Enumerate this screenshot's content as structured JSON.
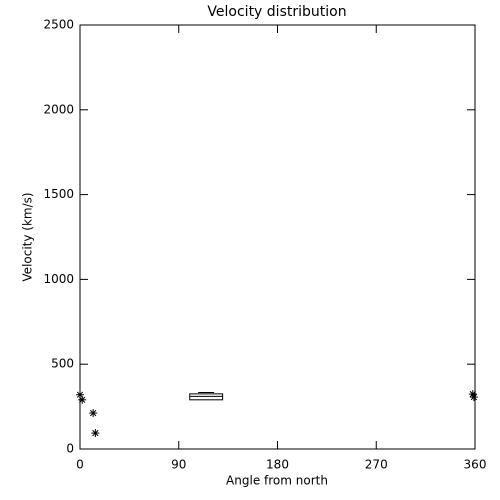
{
  "chart_data": {
    "type": "scatter",
    "title": "Velocity distribution",
    "x_label": "Angle from north",
    "y_label": "Velocity (km/s)",
    "x": [
      0,
      2,
      12,
      14,
      358,
      359
    ],
    "values": [
      320,
      290,
      212,
      94,
      324,
      306
    ],
    "color": "#000000",
    "box": {
      "xrange": [
        100,
        130
      ],
      "low": 290,
      "median": 310,
      "high": 325,
      "max": 333
    },
    "xlim": [
      0,
      360
    ],
    "xticks": [
      0,
      90,
      180,
      270,
      360
    ],
    "ylim": [
      0,
      2500
    ],
    "yticks": [
      0,
      500,
      1000,
      1500,
      2000,
      2500
    ]
  }
}
